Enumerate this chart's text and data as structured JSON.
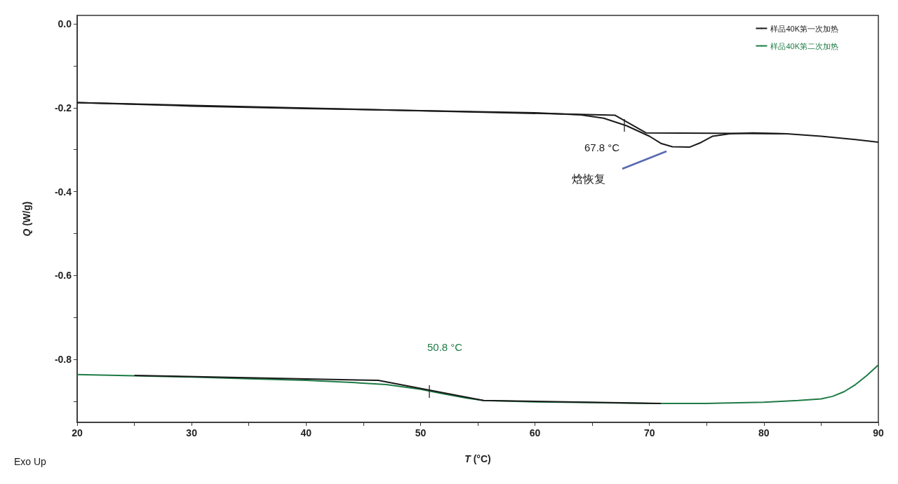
{
  "chart_data": {
    "type": "line",
    "xlabel": "T (°C)",
    "ylabel": "Q (W/g)",
    "xlim": [
      20,
      90
    ],
    "xticks": [
      20,
      {
        "value": 25,
        "label": null
      },
      30,
      {
        "value": 35,
        "label": null
      },
      40,
      {
        "value": 45,
        "label": null
      },
      50,
      {
        "value": 55,
        "label": null
      },
      60,
      {
        "value": 65,
        "label": null
      },
      70,
      {
        "value": 75,
        "label": null
      },
      80,
      {
        "value": 85,
        "label": null
      },
      90
    ],
    "ylim": [
      -0.95,
      0.02
    ],
    "yticks": [
      {
        "value": 0,
        "label": "0.0"
      },
      {
        "value": -0.1,
        "label": null
      },
      -0.2,
      {
        "value": -0.3,
        "label": null
      },
      -0.4,
      {
        "value": -0.5,
        "label": null
      },
      -0.6,
      {
        "value": -0.7,
        "label": null
      },
      -0.8,
      {
        "value": -0.9,
        "label": null
      }
    ],
    "grid": false,
    "legend": "top right",
    "marker": "none",
    "line_style": "solid",
    "series": [
      {
        "name": "样品40K第一次加热",
        "color": "#1a1a1a",
        "x": [
          20,
          30,
          40,
          50,
          60,
          64,
          66,
          68,
          70,
          71,
          72,
          73.5,
          74.5,
          75.5,
          77,
          79,
          82,
          85,
          88,
          90
        ],
        "values": [
          -0.188,
          -0.196,
          -0.202,
          -0.207,
          -0.212,
          -0.217,
          -0.225,
          -0.243,
          -0.268,
          -0.285,
          -0.293,
          -0.294,
          -0.283,
          -0.268,
          -0.262,
          -0.26,
          -0.262,
          -0.268,
          -0.276,
          -0.282
        ]
      },
      {
        "name": "样品40K第二次加热",
        "color": "#1e7b45",
        "x": [
          20,
          25,
          30,
          35,
          40,
          44,
          47,
          50,
          52,
          54,
          55.5,
          60,
          65,
          70,
          75,
          80,
          83,
          85,
          86,
          87,
          88,
          89,
          90
        ],
        "values": [
          -0.836,
          -0.839,
          -0.842,
          -0.846,
          -0.85,
          -0.855,
          -0.86,
          -0.871,
          -0.882,
          -0.892,
          -0.898,
          -0.901,
          -0.903,
          -0.905,
          -0.905,
          -0.902,
          -0.898,
          -0.894,
          -0.888,
          -0.877,
          -0.86,
          -0.838,
          -0.813
        ]
      },
      {
        "color": "#1a1a1a",
        "x": [
          20,
          67,
          69.7,
          82
        ],
        "values": [
          -0.188,
          -0.218,
          -0.26,
          -0.262
        ]
      },
      {
        "color": "#1a1a1a",
        "x": [
          25,
          46.3,
          55.5,
          71
        ],
        "values": [
          -0.838,
          -0.85,
          -0.898,
          -0.905
        ]
      }
    ],
    "annotations": [
      "67.8 °C",
      "焓恢复",
      "50.8 °C",
      "Exo Up"
    ]
  }
}
